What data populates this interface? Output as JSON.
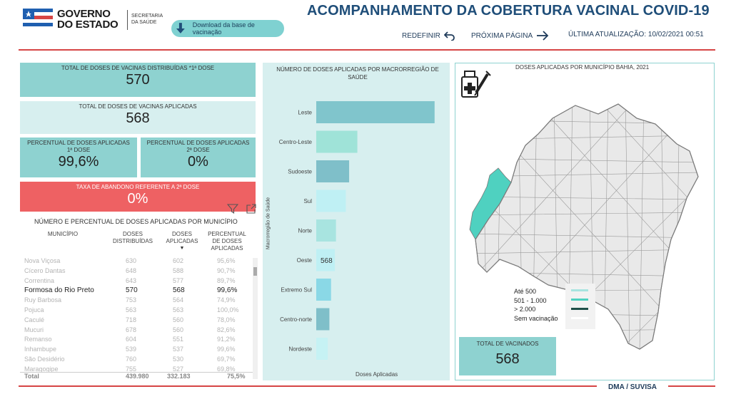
{
  "header": {
    "logo_text_line1": "GOVERNO",
    "logo_text_line2": "DO ESTADO",
    "logo_sec_line1": "SECRETARIA",
    "logo_sec_line2": "DA SAÚDE",
    "download_label": "Download da base de vacinação",
    "title": "ACOMPANHAMENTO DA COBERTURA VACINAL COVID-19",
    "reset_label": "REDEFINIR",
    "next_label": "PRÓXIMA PÁGINA",
    "update_label": "ÚLTIMA ATUALIZAÇÃO:",
    "update_value": "10/02/2021 00:51"
  },
  "kpis": {
    "distributed_label": "TOTAL DE DOSES DE VACINAS DISTRIBUÍDAS *1ª DOSE",
    "distributed_value": "570",
    "applied_label": "TOTAL DE DOSES DE VACINAS APLICADAS",
    "applied_value": "568",
    "pct1_label_line1": "PERCENTUAL DE DOSES APLICADAS",
    "pct1_label_line2": "1ª DOSE",
    "pct1_value": "99,6%",
    "pct2_label_line1": "PERCENTUAL DE DOSES APLICADAS",
    "pct2_label_line2": "2ª DOSE",
    "pct2_value": "0%",
    "abandon_label": "TAXA DE ABANDONO REFERENTE A 2ª DOSE",
    "abandon_value": "0%"
  },
  "table": {
    "title": "NÚMERO E PERCENTUAL DE DOSES APLICADAS POR MUNICÍPIO",
    "columns": {
      "mun": "MUNICÍPIO",
      "dist_1": "DOSES",
      "dist_2": "DISTRIBUÍDAS",
      "apl_1": "DOSES",
      "apl_2": "APLICADAS",
      "pct_1": "PERCENTUAL",
      "pct_2": "DE DOSES",
      "pct_3": "APLICADAS"
    },
    "rows": [
      {
        "mun": "Nova Viçosa",
        "dist": "630",
        "apl": "602",
        "pct": "95,6%"
      },
      {
        "mun": "Cícero Dantas",
        "dist": "648",
        "apl": "588",
        "pct": "90,7%"
      },
      {
        "mun": "Correntina",
        "dist": "643",
        "apl": "577",
        "pct": "89,7%"
      },
      {
        "mun": "Formosa do Rio Preto",
        "dist": "570",
        "apl": "568",
        "pct": "99,6%"
      },
      {
        "mun": "Ruy Barbosa",
        "dist": "753",
        "apl": "564",
        "pct": "74,9%"
      },
      {
        "mun": "Pojuca",
        "dist": "563",
        "apl": "563",
        "pct": "100,0%"
      },
      {
        "mun": "Caculé",
        "dist": "718",
        "apl": "560",
        "pct": "78,0%"
      },
      {
        "mun": "Mucuri",
        "dist": "678",
        "apl": "560",
        "pct": "82,6%"
      },
      {
        "mun": "Remanso",
        "dist": "604",
        "apl": "551",
        "pct": "91,2%"
      },
      {
        "mun": "Inhambupe",
        "dist": "539",
        "apl": "537",
        "pct": "99,6%"
      },
      {
        "mun": "São Desidério",
        "dist": "760",
        "apl": "530",
        "pct": "69,7%"
      },
      {
        "mun": "Maragogipe",
        "dist": "755",
        "apl": "527",
        "pct": "69,8%"
      }
    ],
    "total_label": "Total",
    "total_dist": "439.980",
    "total_apl": "332.183",
    "total_pct": "75,5%"
  },
  "chart_data": {
    "type": "bar",
    "orientation": "horizontal",
    "title": "NÚMERO DE DOSES APLICADAS POR MACRORREGIÃO DE SAÚDE",
    "xlabel": "Doses Aplicadas",
    "ylabel": "Macrorregião de Saúde",
    "categories": [
      "Leste",
      "Centro-Leste",
      "Sudoeste",
      "Sul",
      "Norte",
      "Oeste",
      "Extremo Sul",
      "Centro-norte",
      "Nordeste"
    ],
    "values": [
      3600,
      1250,
      1000,
      900,
      600,
      568,
      450,
      400,
      350
    ],
    "colors": [
      "#80c5cc",
      "#9fe3d8",
      "#7fbfc9",
      "#bff0f4",
      "#a8e4e0",
      "#bff0f4",
      "#8ad8e6",
      "#7fbfc9",
      "#c6f2f4"
    ],
    "data_labels": {
      "Oeste": "568"
    },
    "xlim": [
      0,
      3800
    ]
  },
  "map": {
    "title": "DOSES APLICADAS POR MUNICÍPIO BAHIA, 2021",
    "legend": [
      {
        "label": "Até 500",
        "color": "#a8e4e0"
      },
      {
        "label": "501 - 1.000",
        "color": "#4fd1c0"
      },
      {
        "label": "> 2.000",
        "color": "#1e4f48"
      },
      {
        "label": "Sem vacinação",
        "color": "#ffffff"
      }
    ],
    "highlight_color": "#4fd1c0",
    "vaccinated_label": "TOTAL DE VACINADOS",
    "vaccinated_value": "568"
  },
  "footer": {
    "tag": "DMA / SUVISA"
  },
  "colors": {
    "accent_red": "#d64545",
    "teal": "#8ed2d0",
    "title_blue": "#1f4e79"
  }
}
